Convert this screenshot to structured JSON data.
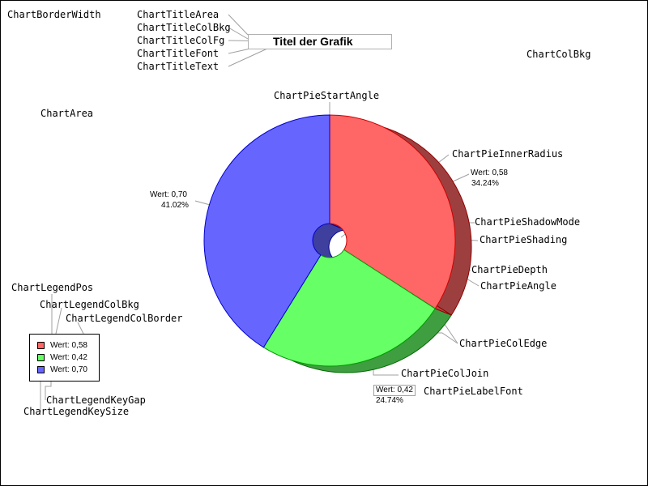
{
  "chart_data": {
    "type": "pie",
    "title": "Titel der Grafik",
    "slices": [
      {
        "label": "Wert: 0,58",
        "value": 0.58,
        "percent_label": "34.24%",
        "color": "#ff6666",
        "edge": "#cc0000"
      },
      {
        "label": "Wert: 0,42",
        "value": 0.42,
        "percent_label": "24.74%",
        "color": "#66ff66",
        "edge": "#009900"
      },
      {
        "label": "Wert: 0,70",
        "value": 0.7,
        "percent_label": "41.02%",
        "color": "#6666ff",
        "edge": "#0000cc"
      }
    ],
    "legend_placement": "bottom-left",
    "style": "3d-pie with inner radius"
  },
  "annotations": {
    "border_width": "ChartBorderWidth",
    "title_area": "ChartTitleArea",
    "title_col_bkg": "ChartTitleColBkg",
    "title_col_fg": "ChartTitleColFg",
    "title_font": "ChartTitleFont",
    "title_text": "ChartTitleText",
    "col_bkg": "ChartColBkg",
    "area": "ChartArea",
    "pie_start_angle": "ChartPieStartAngle",
    "pie_inner_radius": "ChartPieInnerRadius",
    "pie_shadow_mode": "ChartPieShadowMode",
    "pie_shading": "ChartPieShading",
    "pie_depth": "ChartPieDepth",
    "pie_angle": "ChartPieAngle",
    "pie_col_edge": "ChartPieColEdge",
    "pie_col_join": "ChartPieColJoin",
    "pie_label_font": "ChartPieLabelFont",
    "legend_pos": "ChartLegendPos",
    "legend_col_bkg": "ChartLegendColBkg",
    "legend_col_border": "ChartLegendColBorder",
    "legend_key_gap": "ChartLegendKeyGap",
    "legend_key_size": "ChartLegendKeySize"
  }
}
